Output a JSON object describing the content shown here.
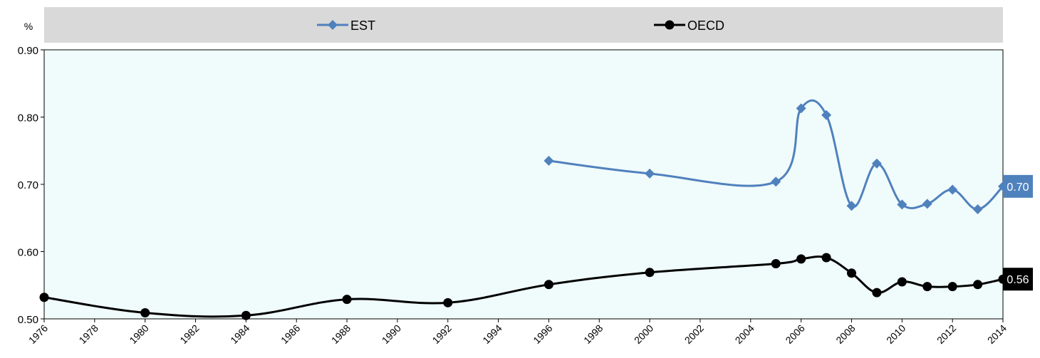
{
  "chart_data": {
    "type": "line",
    "unit_label": "%",
    "ylim": [
      0.5,
      0.9
    ],
    "yticks": [
      "0.50",
      "0.60",
      "0.70",
      "0.80",
      "0.90"
    ],
    "xlim": [
      1976,
      2014
    ],
    "xticks": [
      "1976",
      "1978",
      "1980",
      "1982",
      "1984",
      "1986",
      "1988",
      "1990",
      "1992",
      "1994",
      "1996",
      "1998",
      "2000",
      "2002",
      "2004",
      "2006",
      "2008",
      "2010",
      "2012",
      "2014"
    ],
    "grid": false,
    "legend_position": "top",
    "plot_background": "#f0fbfb",
    "series": [
      {
        "name": "EST",
        "color": "#4f81bd",
        "marker": "diamond",
        "end_label": "0.70",
        "points": [
          [
            1996,
            0.735
          ],
          [
            2000,
            0.716
          ],
          [
            2005,
            0.704
          ],
          [
            2006,
            0.813
          ],
          [
            2007,
            0.803
          ],
          [
            2008,
            0.668
          ],
          [
            2009,
            0.731
          ],
          [
            2010,
            0.67
          ],
          [
            2011,
            0.671
          ],
          [
            2012,
            0.692
          ],
          [
            2013,
            0.663
          ],
          [
            2014,
            0.697
          ]
        ]
      },
      {
        "name": "OECD",
        "color": "#000000",
        "marker": "circle",
        "end_label": "0.56",
        "points": [
          [
            1976,
            0.532
          ],
          [
            1980,
            0.509
          ],
          [
            1984,
            0.505
          ],
          [
            1988,
            0.529
          ],
          [
            1992,
            0.524
          ],
          [
            1996,
            0.551
          ],
          [
            2000,
            0.569
          ],
          [
            2005,
            0.582
          ],
          [
            2006,
            0.589
          ],
          [
            2007,
            0.591
          ],
          [
            2008,
            0.568
          ],
          [
            2009,
            0.539
          ],
          [
            2010,
            0.555
          ],
          [
            2011,
            0.548
          ],
          [
            2012,
            0.548
          ],
          [
            2013,
            0.551
          ],
          [
            2014,
            0.559
          ]
        ]
      }
    ]
  }
}
